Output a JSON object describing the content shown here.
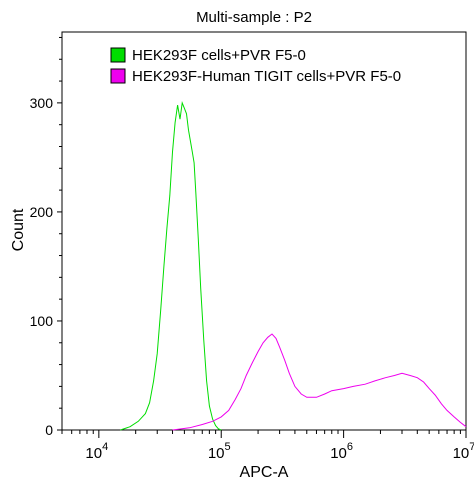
{
  "chart_data": {
    "type": "line",
    "title": "Multi-sample : P2",
    "xlabel": "APC-A",
    "ylabel": "Count",
    "x_scale": "log",
    "xlim": [
      5000,
      10000000
    ],
    "ylim": [
      0,
      365
    ],
    "x_ticks": [
      {
        "base": "10",
        "exp": "4"
      },
      {
        "base": "10",
        "exp": "5"
      },
      {
        "base": "10",
        "exp": "6"
      },
      {
        "base": "10",
        "exp": "7"
      }
    ],
    "y_ticks": [
      "0",
      "100",
      "200",
      "300"
    ],
    "legend_position": "top-left",
    "grid": false,
    "series": [
      {
        "name": "HEK293F cells+PVR F5-0",
        "color": "#00dd00",
        "x": [
          15000,
          18000,
          21000,
          24000,
          26000,
          28000,
          30000,
          32000,
          34000,
          36000,
          38000,
          40000,
          42000,
          44000,
          46000,
          48000,
          50000,
          52000,
          54000,
          56000,
          58000,
          60000,
          62000,
          65000,
          68000,
          72000,
          76000,
          80000,
          85000,
          90000,
          95000,
          100000
        ],
        "y": [
          0,
          3,
          8,
          15,
          25,
          45,
          70,
          110,
          150,
          185,
          215,
          255,
          282,
          298,
          285,
          300,
          295,
          290,
          275,
          265,
          255,
          245,
          218,
          175,
          130,
          82,
          45,
          22,
          10,
          4,
          1,
          0
        ]
      },
      {
        "name": "HEK293F-Human TIGIT cells+PVR F5-0",
        "color": "#ee00ee",
        "x": [
          40000,
          55000,
          70000,
          85000,
          100000,
          115000,
          130000,
          145000,
          160000,
          180000,
          200000,
          220000,
          240000,
          260000,
          280000,
          300000,
          330000,
          360000,
          400000,
          450000,
          500000,
          600000,
          700000,
          800000,
          1000000,
          1200000,
          1500000,
          1800000,
          2200000,
          2600000,
          3000000,
          3500000,
          4000000,
          4500000,
          5000000,
          5600000,
          6300000,
          7000000,
          8000000,
          9000000,
          10000000
        ],
        "y": [
          0,
          2,
          5,
          8,
          12,
          18,
          28,
          38,
          50,
          62,
          72,
          80,
          85,
          88,
          84,
          76,
          64,
          52,
          40,
          33,
          30,
          30,
          33,
          36,
          38,
          40,
          42,
          45,
          48,
          50,
          52,
          50,
          48,
          44,
          38,
          32,
          24,
          18,
          12,
          7,
          3
        ]
      }
    ]
  }
}
